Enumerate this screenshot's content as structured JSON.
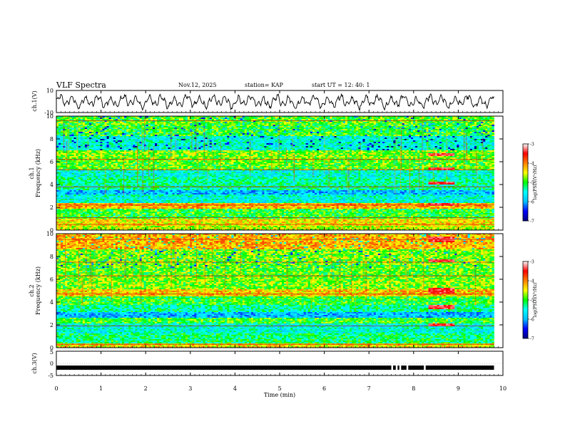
{
  "header": {
    "title": "VLF Spectra",
    "date": "Nov.12, 2025",
    "station": "station= KAP",
    "start_ut": "start  UT  =   12: 40: 1"
  },
  "chart_data": [
    {
      "type": "line",
      "name": "ch1-waveform",
      "ylabel": "ch.1(V)",
      "ylim": [
        -10,
        10
      ],
      "yticks": [
        "10",
        "-10"
      ],
      "xlim": [
        0,
        10
      ]
    },
    {
      "type": "heatmap",
      "name": "ch1-spectrogram",
      "ylabel_top": "ch.1",
      "ylabel": "Frequency (kHz)",
      "ylim": [
        0,
        10
      ],
      "yticks": [
        "0",
        "2",
        "4",
        "6",
        "8",
        "10"
      ],
      "xlim": [
        0,
        9.8
      ],
      "colorbar": {
        "label": "log(PSD)(V²/Hz)",
        "ticks": [
          "-3",
          "-4",
          "-5",
          "-6",
          "-7"
        ],
        "range": [
          -7,
          -3
        ]
      },
      "bands_khz": [
        {
          "from": 0.0,
          "to": 0.35,
          "level": -4.6
        },
        {
          "from": 0.35,
          "to": 1.0,
          "level": -4.4
        },
        {
          "from": 1.0,
          "to": 1.9,
          "level": -5.0
        },
        {
          "from": 1.9,
          "to": 2.4,
          "level": -4.2
        },
        {
          "from": 2.4,
          "to": 3.1,
          "level": -5.5
        },
        {
          "from": 3.1,
          "to": 3.5,
          "level": -5.9
        },
        {
          "from": 3.5,
          "to": 4.6,
          "level": -5.3
        },
        {
          "from": 4.6,
          "to": 5.3,
          "level": -5.5
        },
        {
          "from": 5.3,
          "to": 6.1,
          "level": -4.9
        },
        {
          "from": 6.1,
          "to": 7.0,
          "level": -4.8
        },
        {
          "from": 7.0,
          "to": 8.3,
          "level": -5.5
        },
        {
          "from": 8.3,
          "to": 9.2,
          "level": -5.0
        },
        {
          "from": 9.2,
          "to": 10.0,
          "level": -4.9
        }
      ],
      "lines_khz": [
        0.5,
        1.1,
        2.2,
        3.8,
        5.3,
        6.2,
        9.6
      ],
      "burst": {
        "t_from": 8.35,
        "t_to": 8.9,
        "level": -3.4,
        "bands_khz": [
          [
            5.2,
            5.5
          ],
          [
            4.0,
            4.2
          ],
          [
            2.1,
            2.4
          ],
          [
            6.5,
            6.8
          ]
        ]
      }
    },
    {
      "type": "heatmap",
      "name": "ch2-spectrogram",
      "ylabel_top": "ch.2",
      "ylabel": "Frequency (kHz)",
      "ylim": [
        0,
        10
      ],
      "yticks": [
        "0",
        "2",
        "4",
        "6",
        "8",
        "10"
      ],
      "xlim": [
        0,
        9.8
      ],
      "colorbar": {
        "label": "log(PSD)(V²/Hz)",
        "ticks": [
          "-3",
          "-4",
          "-5",
          "-6",
          "-7"
        ],
        "range": [
          -7,
          -3
        ]
      },
      "bands_khz": [
        {
          "from": 0.0,
          "to": 0.4,
          "level": -4.4
        },
        {
          "from": 0.4,
          "to": 1.2,
          "level": -5.2
        },
        {
          "from": 1.2,
          "to": 2.1,
          "level": -5.5
        },
        {
          "from": 2.1,
          "to": 2.6,
          "level": -5.0
        },
        {
          "from": 2.6,
          "to": 3.1,
          "level": -5.9
        },
        {
          "from": 3.1,
          "to": 3.7,
          "level": -5.3
        },
        {
          "from": 3.7,
          "to": 4.5,
          "level": -5.0
        },
        {
          "from": 4.5,
          "to": 5.1,
          "level": -4.3
        },
        {
          "from": 5.1,
          "to": 6.2,
          "level": -4.8
        },
        {
          "from": 6.2,
          "to": 7.3,
          "level": -4.9
        },
        {
          "from": 7.3,
          "to": 8.6,
          "level": -4.8
        },
        {
          "from": 8.6,
          "to": 10.0,
          "level": -4.2
        }
      ],
      "lines_khz": [
        0.3,
        1.9,
        4.7,
        6.3,
        7.5,
        9.5
      ],
      "burst": {
        "t_from": 8.35,
        "t_to": 8.9,
        "level": -3.4,
        "bands_khz": [
          [
            9.3,
            9.7
          ],
          [
            7.5,
            7.8
          ],
          [
            4.8,
            5.2
          ],
          [
            3.4,
            3.7
          ],
          [
            1.9,
            2.1
          ]
        ]
      }
    },
    {
      "type": "line",
      "name": "ch3-signal",
      "ylabel": "ch.3(V)",
      "ylim": [
        -5,
        5
      ],
      "yticks": [
        "5",
        "0",
        "-5"
      ],
      "xlim": [
        0,
        10
      ],
      "level": -1.8,
      "gaps_min": [
        7.52,
        7.62,
        7.7,
        7.86,
        8.25
      ]
    }
  ],
  "x_axis": {
    "xlabel": "Time (min)",
    "xlim": [
      0,
      10
    ],
    "ticks": [
      "0",
      "1",
      "2",
      "3",
      "4",
      "5",
      "6",
      "7",
      "8",
      "9",
      "10"
    ]
  },
  "colors": {
    "axes": "#000000",
    "waveform": "#000000",
    "colormap": [
      "#000080",
      "#0000ff",
      "#00bfff",
      "#00ffff",
      "#00ff00",
      "#ffff00",
      "#ff8000",
      "#ff0000",
      "#ffffff"
    ]
  }
}
